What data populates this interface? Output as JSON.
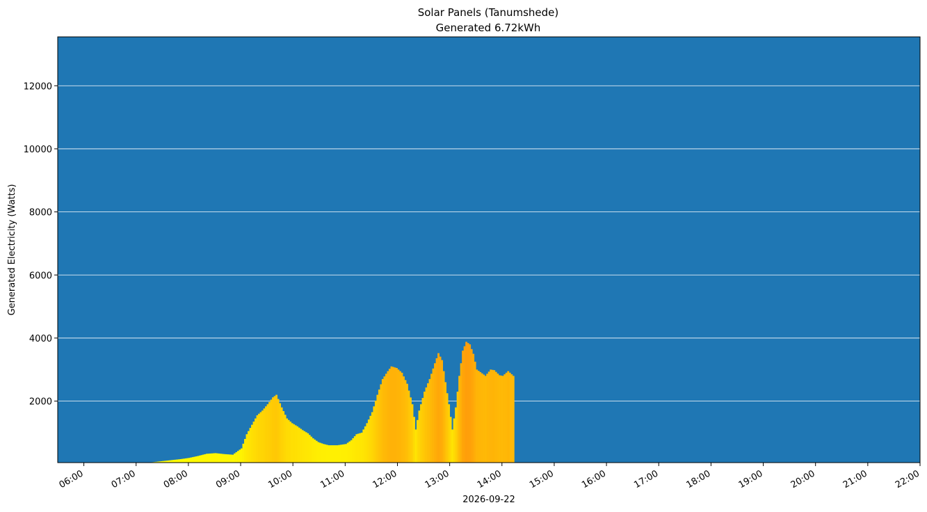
{
  "chart_data": {
    "type": "bar",
    "title": "Solar Panels (Tanumshede)",
    "subtitle": "Generated 6.72kWh",
    "ylabel": "Generated Electricity (Watts)",
    "xlabel": "2026-09-22",
    "ylim": [
      50,
      13550
    ],
    "xlim": [
      "05:30",
      "22:00"
    ],
    "grid": "horizontal",
    "background_color": "#1f77b4",
    "grid_color": "#ffffff",
    "y_ticks": [
      2000,
      4000,
      6000,
      8000,
      10000,
      12000
    ],
    "x_ticks": [
      "06:00",
      "07:00",
      "08:00",
      "09:00",
      "10:00",
      "11:00",
      "12:00",
      "13:00",
      "14:00",
      "15:00",
      "16:00",
      "17:00",
      "18:00",
      "19:00",
      "20:00",
      "21:00",
      "22:00"
    ],
    "bar_interval_minutes": 2,
    "points": [
      [
        "06:40",
        5
      ],
      [
        "06:50",
        10
      ],
      [
        "07:00",
        20
      ],
      [
        "07:10",
        40
      ],
      [
        "07:20",
        70
      ],
      [
        "07:30",
        100
      ],
      [
        "07:40",
        130
      ],
      [
        "07:50",
        160
      ],
      [
        "08:00",
        200
      ],
      [
        "08:10",
        260
      ],
      [
        "08:20",
        330
      ],
      [
        "08:30",
        350
      ],
      [
        "08:40",
        320
      ],
      [
        "08:50",
        300
      ],
      [
        "09:00",
        500
      ],
      [
        "09:06",
        950
      ],
      [
        "09:12",
        1250
      ],
      [
        "09:18",
        1550
      ],
      [
        "09:24",
        1700
      ],
      [
        "09:30",
        1900
      ],
      [
        "09:36",
        2120
      ],
      [
        "09:40",
        2200
      ],
      [
        "09:46",
        1800
      ],
      [
        "09:52",
        1450
      ],
      [
        "09:58",
        1300
      ],
      [
        "10:04",
        1200
      ],
      [
        "10:10",
        1080
      ],
      [
        "10:16",
        980
      ],
      [
        "10:22",
        820
      ],
      [
        "10:28",
        700
      ],
      [
        "10:34",
        640
      ],
      [
        "10:40",
        600
      ],
      [
        "10:50",
        600
      ],
      [
        "11:00",
        640
      ],
      [
        "11:06",
        760
      ],
      [
        "11:12",
        950
      ],
      [
        "11:18",
        1000
      ],
      [
        "11:24",
        1300
      ],
      [
        "11:30",
        1650
      ],
      [
        "11:36",
        2200
      ],
      [
        "11:42",
        2700
      ],
      [
        "11:48",
        2950
      ],
      [
        "11:52",
        3100
      ],
      [
        "11:58",
        3050
      ],
      [
        "12:04",
        2900
      ],
      [
        "12:10",
        2550
      ],
      [
        "12:16",
        1900
      ],
      [
        "12:20",
        1100
      ],
      [
        "12:24",
        1700
      ],
      [
        "12:30",
        2300
      ],
      [
        "12:36",
        2700
      ],
      [
        "12:42",
        3200
      ],
      [
        "12:46",
        3520
      ],
      [
        "12:50",
        3300
      ],
      [
        "12:54",
        2600
      ],
      [
        "12:58",
        1900
      ],
      [
        "13:02",
        1100
      ],
      [
        "13:06",
        1800
      ],
      [
        "13:10",
        2800
      ],
      [
        "13:14",
        3600
      ],
      [
        "13:18",
        3880
      ],
      [
        "13:22",
        3800
      ],
      [
        "13:26",
        3500
      ],
      [
        "13:30",
        3000
      ],
      [
        "13:36",
        2880
      ],
      [
        "13:40",
        2800
      ],
      [
        "13:46",
        3000
      ],
      [
        "13:50",
        2980
      ],
      [
        "13:56",
        2820
      ],
      [
        "14:00",
        2800
      ],
      [
        "14:06",
        2950
      ],
      [
        "14:12",
        2800
      ]
    ]
  }
}
